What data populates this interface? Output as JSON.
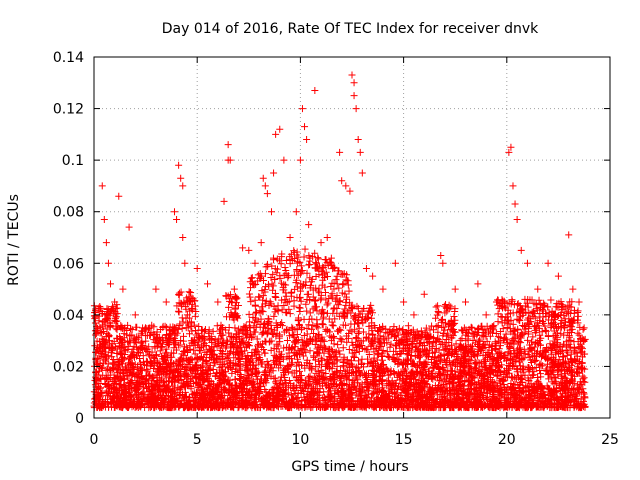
{
  "chart_data": {
    "type": "scatter",
    "title": "Day 014 of 2016, Rate Of TEC Index for receiver dnvk",
    "xlabel": "GPS time / hours",
    "ylabel": "ROTI / TECUs",
    "xlim": [
      0,
      25
    ],
    "ylim": [
      0,
      0.14
    ],
    "xticks": [
      0,
      5,
      10,
      15,
      20,
      25
    ],
    "xtick_labels": [
      "0",
      "5",
      "10",
      "15",
      "20",
      "25"
    ],
    "yticks": [
      0,
      0.02,
      0.04,
      0.06,
      0.08,
      0.1,
      0.12,
      0.14
    ],
    "ytick_labels": [
      "0",
      "0.02",
      "0.04",
      "0.06",
      "0.08",
      "0.1",
      "0.12",
      "0.14"
    ],
    "grid": true,
    "marker": "+",
    "series": [
      {
        "name": "ROTI",
        "color": "#ff0000",
        "points": [
          [
            0.1,
            0.012
          ],
          [
            0.3,
            0.035
          ],
          [
            0.4,
            0.09
          ],
          [
            0.5,
            0.077
          ],
          [
            0.6,
            0.068
          ],
          [
            0.7,
            0.06
          ],
          [
            0.8,
            0.052
          ],
          [
            1.0,
            0.045
          ],
          [
            1.2,
            0.086
          ],
          [
            1.4,
            0.05
          ],
          [
            1.7,
            0.074
          ],
          [
            2.0,
            0.04
          ],
          [
            2.5,
            0.035
          ],
          [
            3.0,
            0.05
          ],
          [
            3.2,
            0.03
          ],
          [
            3.5,
            0.045
          ],
          [
            3.9,
            0.08
          ],
          [
            4.0,
            0.077
          ],
          [
            4.1,
            0.098
          ],
          [
            4.2,
            0.093
          ],
          [
            4.3,
            0.09
          ],
          [
            4.3,
            0.07
          ],
          [
            4.4,
            0.06
          ],
          [
            4.6,
            0.047
          ],
          [
            5.0,
            0.058
          ],
          [
            5.5,
            0.052
          ],
          [
            6.0,
            0.045
          ],
          [
            6.3,
            0.084
          ],
          [
            6.5,
            0.106
          ],
          [
            6.5,
            0.1
          ],
          [
            6.6,
            0.1
          ],
          [
            6.8,
            0.05
          ],
          [
            7.2,
            0.066
          ],
          [
            7.5,
            0.065
          ],
          [
            7.8,
            0.06
          ],
          [
            8.1,
            0.068
          ],
          [
            8.2,
            0.093
          ],
          [
            8.3,
            0.09
          ],
          [
            8.4,
            0.087
          ],
          [
            8.6,
            0.08
          ],
          [
            8.7,
            0.095
          ],
          [
            8.8,
            0.11
          ],
          [
            9.0,
            0.112
          ],
          [
            9.2,
            0.1
          ],
          [
            9.5,
            0.07
          ],
          [
            9.8,
            0.08
          ],
          [
            10.0,
            0.1
          ],
          [
            10.1,
            0.12
          ],
          [
            10.2,
            0.113
          ],
          [
            10.3,
            0.108
          ],
          [
            10.4,
            0.075
          ],
          [
            10.7,
            0.127
          ],
          [
            11.0,
            0.068
          ],
          [
            11.3,
            0.07
          ],
          [
            11.5,
            0.062
          ],
          [
            11.9,
            0.103
          ],
          [
            12.0,
            0.092
          ],
          [
            12.2,
            0.09
          ],
          [
            12.4,
            0.088
          ],
          [
            12.5,
            0.133
          ],
          [
            12.6,
            0.13
          ],
          [
            12.6,
            0.125
          ],
          [
            12.7,
            0.12
          ],
          [
            12.8,
            0.108
          ],
          [
            12.9,
            0.103
          ],
          [
            13.0,
            0.095
          ],
          [
            13.2,
            0.058
          ],
          [
            13.5,
            0.055
          ],
          [
            14.0,
            0.05
          ],
          [
            14.6,
            0.06
          ],
          [
            15.0,
            0.045
          ],
          [
            15.5,
            0.04
          ],
          [
            16.0,
            0.048
          ],
          [
            16.8,
            0.063
          ],
          [
            16.9,
            0.06
          ],
          [
            17.5,
            0.05
          ],
          [
            18.0,
            0.045
          ],
          [
            18.6,
            0.052
          ],
          [
            19.0,
            0.04
          ],
          [
            19.5,
            0.045
          ],
          [
            20.1,
            0.103
          ],
          [
            20.2,
            0.105
          ],
          [
            20.3,
            0.09
          ],
          [
            20.4,
            0.083
          ],
          [
            20.5,
            0.077
          ],
          [
            20.7,
            0.065
          ],
          [
            21.0,
            0.06
          ],
          [
            21.5,
            0.05
          ],
          [
            22.0,
            0.06
          ],
          [
            22.5,
            0.055
          ],
          [
            23.0,
            0.071
          ],
          [
            23.2,
            0.05
          ],
          [
            23.5,
            0.045
          ],
          [
            23.7,
            0.03
          ]
        ]
      }
    ]
  }
}
